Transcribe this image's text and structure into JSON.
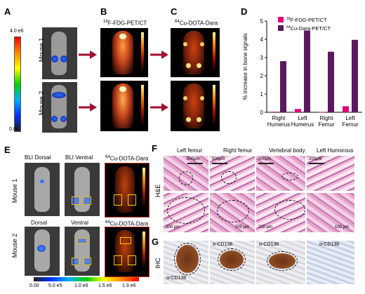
{
  "panels": {
    "a": "A",
    "b": "B",
    "c": "C",
    "d": "D",
    "e": "E",
    "f": "F",
    "g": "G"
  },
  "panel_a": {
    "scale_max": "4.0 e6",
    "scale_min": "0.00",
    "mouse1": "Mouse 1",
    "mouse2": "Mouse 2"
  },
  "panel_b": {
    "title_sup": "18",
    "title_rest": "F-FDG-PET/CT"
  },
  "panel_c": {
    "title_sup": "64",
    "title_rest": "Cu-DOTA-Dara"
  },
  "panel_e": {
    "headers": [
      "BLI Dorsal",
      "BLI Ventral"
    ],
    "dara_sup": "64",
    "dara_rest": "Cu-DOTA-Dara",
    "row2_labels": [
      "Dorsal",
      "Ventral"
    ],
    "mouse1": "Mouse 1",
    "mouse2": "Mouse 2",
    "scale_ticks": [
      "0.00",
      "5.0 e5",
      "1.0 e6",
      "1.5 e6",
      "1.9 e6"
    ]
  },
  "panel_f": {
    "columns": [
      "Left femur",
      "Right femur",
      "Vertebral body",
      "Left Humorous"
    ],
    "row_label": "H&E",
    "scalebars_top": [
      "500µm",
      "500µm",
      "500µm",
      "200µM"
    ],
    "scalebars_bottom": [
      "200 µm",
      "200 µm",
      "200 µm",
      "100 µm"
    ]
  },
  "panel_g": {
    "row_label": "IHC",
    "stain": [
      "α-CD138",
      "α-CD138",
      "α-CD138",
      "α-CD138"
    ]
  },
  "colors": {
    "fdg": "#e0007a",
    "dara": "#5b1a5e"
  },
  "chart_data": {
    "type": "bar",
    "ylabel": "% increase in bone signals",
    "ylim": [
      0,
      5
    ],
    "yticks": [
      0,
      1,
      2,
      3,
      4,
      5
    ],
    "categories": [
      [
        "Right",
        "Humerus"
      ],
      [
        "Left",
        "Humerus"
      ],
      [
        "Right",
        "Femur"
      ],
      [
        "Left",
        "Femur"
      ]
    ],
    "series": [
      {
        "name_sup": "18",
        "name_rest": "F-FDG-PET/CT",
        "color": "#e0007a",
        "values": [
          0.03,
          0.18,
          0.02,
          0.33
        ]
      },
      {
        "name_sup": "64",
        "name_rest": "Cu-Dara-PET/CT",
        "color": "#5b1a5e",
        "values": [
          2.8,
          4.48,
          3.32,
          3.97
        ]
      }
    ]
  }
}
